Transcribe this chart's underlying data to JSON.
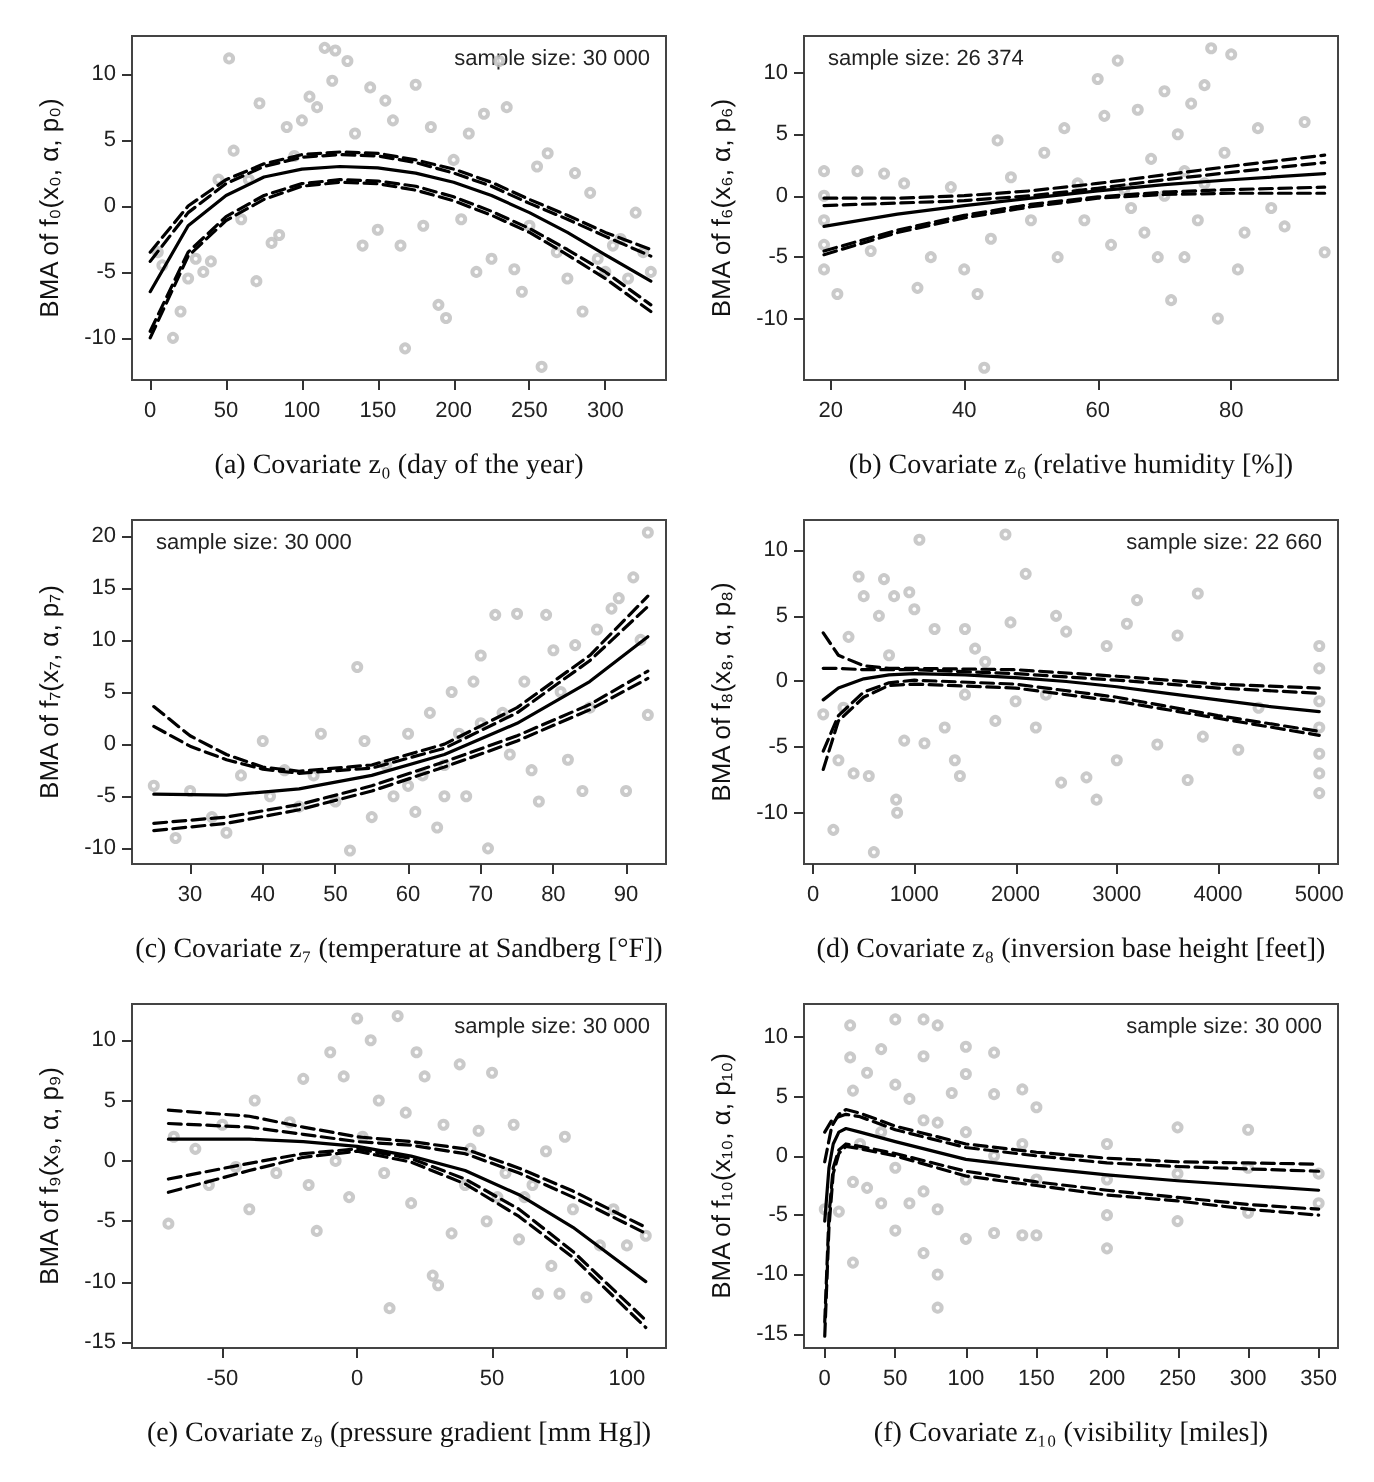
{
  "chart_data": [
    {
      "type": "scatter",
      "xlabel": "(a) Covariate z₀ (day of the year)",
      "ylabel": "BMA of f₀(x₀, α, p₀)",
      "annotations": [
        "sample size: 30 000"
      ],
      "xlim": [
        -12,
        340
      ],
      "ylim": [
        -13.2,
        12.9
      ],
      "xticks": [
        0,
        50,
        100,
        150,
        200,
        250,
        300
      ],
      "yticks": [
        -10,
        -5,
        0,
        5,
        10
      ],
      "series": [
        {
          "type": "scatter",
          "color": "#bdbdbd",
          "marker": "circle",
          "x": [
            5,
            8,
            15,
            20,
            25,
            30,
            35,
            40,
            45,
            52,
            55,
            60,
            65,
            70,
            72,
            80,
            85,
            90,
            95,
            100,
            105,
            110,
            115,
            120,
            122,
            130,
            135,
            140,
            145,
            150,
            155,
            160,
            165,
            168,
            175,
            180,
            185,
            190,
            195,
            200,
            205,
            210,
            215,
            220,
            225,
            230,
            235,
            240,
            245,
            250,
            255,
            258,
            262,
            268,
            275,
            280,
            285,
            290,
            295,
            300,
            305,
            310,
            315,
            320,
            325,
            330
          ],
          "values": [
            -3.5,
            -4.5,
            -10,
            -8,
            -5.5,
            -4,
            -5,
            -4.2,
            2,
            11.2,
            4.2,
            -1,
            2,
            -5.7,
            7.8,
            -2.8,
            -2.2,
            6,
            3.8,
            6.5,
            8.3,
            7.5,
            12,
            9.5,
            11.8,
            11,
            5.5,
            -3,
            9,
            -1.8,
            8,
            6.5,
            -3,
            -10.8,
            9.2,
            -1.5,
            6,
            -7.5,
            -8.5,
            3.5,
            -1,
            5.5,
            -5,
            7,
            -4,
            11,
            7.5,
            -4.8,
            -6.5,
            -1.5,
            3,
            -12.2,
            4,
            -3.5,
            -5.5,
            2.5,
            -8,
            1,
            -4,
            -5,
            -3,
            -2.5,
            -5.5,
            -0.5,
            -3.5,
            -5
          ]
        },
        {
          "type": "line",
          "color": "#000000",
          "marker": "none",
          "line_style": "solid",
          "x": [
            0,
            25,
            50,
            75,
            100,
            125,
            150,
            175,
            200,
            225,
            250,
            275,
            300,
            330
          ],
          "values": [
            -6.5,
            -1.5,
            0.8,
            2.2,
            2.8,
            3.0,
            2.9,
            2.5,
            1.8,
            0.8,
            -0.5,
            -2,
            -3.7,
            -5.7
          ]
        },
        {
          "type": "line",
          "color": "#000000",
          "marker": "none",
          "line_style": "dashed",
          "x": [
            0,
            25,
            50,
            75,
            100,
            125,
            150,
            175,
            200,
            225,
            250,
            275,
            300,
            330
          ],
          "values": [
            -3.5,
            0,
            2,
            3.2,
            3.9,
            4.1,
            4.0,
            3.5,
            2.8,
            1.8,
            0.5,
            -0.7,
            -2,
            -3.3
          ]
        },
        {
          "type": "line",
          "color": "#000000",
          "marker": "none",
          "line_style": "dashed",
          "x": [
            0,
            25,
            50,
            75,
            100,
            125,
            150,
            175,
            200,
            225,
            250,
            275,
            300,
            330
          ],
          "values": [
            -4.2,
            -0.5,
            1.7,
            3.0,
            3.7,
            3.9,
            3.8,
            3.3,
            2.5,
            1.5,
            0.2,
            -1,
            -2.3,
            -3.8
          ]
        },
        {
          "type": "line",
          "color": "#000000",
          "marker": "none",
          "line_style": "dashed",
          "x": [
            0,
            25,
            50,
            75,
            100,
            125,
            150,
            175,
            200,
            225,
            250,
            275,
            300,
            330
          ],
          "values": [
            -9.5,
            -3.5,
            -0.8,
            0.8,
            1.7,
            2.0,
            1.9,
            1.5,
            0.7,
            -0.4,
            -1.7,
            -3.3,
            -5,
            -7.5
          ]
        },
        {
          "type": "line",
          "color": "#000000",
          "marker": "none",
          "line_style": "dashed",
          "x": [
            0,
            25,
            50,
            75,
            100,
            125,
            150,
            175,
            200,
            225,
            250,
            275,
            300,
            330
          ],
          "values": [
            -10,
            -3.8,
            -1.1,
            0.5,
            1.5,
            1.8,
            1.7,
            1.2,
            0.4,
            -0.7,
            -2,
            -3.7,
            -5.5,
            -8
          ]
        }
      ]
    },
    {
      "type": "scatter",
      "xlabel": "(b) Covariate z₆ (relative humidity [%])",
      "ylabel": "BMA of f₆(x₆, α, p₆)",
      "annotations": [
        "sample size: 26 374"
      ],
      "xlim": [
        16,
        96
      ],
      "ylim": [
        -15,
        13
      ],
      "xticks": [
        20,
        40,
        60,
        80
      ],
      "yticks": [
        -10,
        -5,
        0,
        5,
        10
      ],
      "series": [
        {
          "type": "scatter",
          "color": "#bdbdbd",
          "marker": "circle",
          "x": [
            19,
            19,
            19,
            19,
            19,
            21,
            24,
            26,
            28,
            31,
            33,
            35,
            38,
            40,
            42,
            43,
            44,
            45,
            47,
            50,
            52,
            54,
            55,
            57,
            58,
            60,
            61,
            62,
            63,
            65,
            66,
            67,
            68,
            69,
            70,
            71,
            72,
            73,
            73,
            74,
            75,
            76,
            77,
            78,
            79,
            80,
            81,
            82,
            84,
            86,
            88,
            91,
            94,
            64,
            70,
            76
          ],
          "values": [
            -6,
            -4,
            -2,
            0,
            2,
            -8,
            2,
            -4.5,
            1.8,
            1,
            -7.5,
            -5,
            0.7,
            -6,
            -8,
            -14,
            -3.5,
            4.5,
            1.5,
            -2,
            3.5,
            -5,
            5.5,
            1,
            -2,
            9.5,
            6.5,
            -4,
            11,
            -1,
            7,
            -3,
            3,
            -5,
            8.5,
            -8.5,
            5,
            -5,
            2,
            7.5,
            -2,
            9,
            12,
            -10,
            3.5,
            11.5,
            -6,
            -3,
            5.5,
            -1,
            -2.5,
            6,
            -4.6,
            0.5,
            0,
            1
          ]
        },
        {
          "type": "line",
          "color": "#000000",
          "marker": "none",
          "line_style": "solid",
          "x": [
            19,
            30,
            40,
            50,
            60,
            70,
            80,
            94
          ],
          "values": [
            -2.5,
            -1.5,
            -0.8,
            -0.2,
            0.4,
            0.9,
            1.3,
            1.8
          ]
        },
        {
          "type": "line",
          "color": "#000000",
          "marker": "none",
          "line_style": "dashed",
          "x": [
            19,
            30,
            40,
            50,
            60,
            70,
            80,
            94
          ],
          "values": [
            -0.2,
            -0.2,
            0,
            0.4,
            1.0,
            1.7,
            2.4,
            3.3
          ]
        },
        {
          "type": "line",
          "color": "#000000",
          "marker": "none",
          "line_style": "dashed",
          "x": [
            19,
            30,
            40,
            50,
            60,
            70,
            80,
            94
          ],
          "values": [
            -0.8,
            -0.6,
            -0.4,
            0,
            0.6,
            1.3,
            1.9,
            2.7
          ]
        },
        {
          "type": "line",
          "color": "#000000",
          "marker": "none",
          "line_style": "dashed",
          "x": [
            19,
            30,
            40,
            50,
            60,
            70,
            80,
            94
          ],
          "values": [
            -4.5,
            -2.8,
            -1.6,
            -0.7,
            -0.1,
            0.3,
            0.5,
            0.7
          ]
        },
        {
          "type": "line",
          "color": "#000000",
          "marker": "none",
          "line_style": "dashed",
          "x": [
            19,
            30,
            40,
            50,
            60,
            70,
            80,
            94
          ],
          "values": [
            -4.8,
            -3.0,
            -1.8,
            -0.9,
            -0.2,
            0.1,
            0.2,
            0.2
          ]
        }
      ]
    },
    {
      "type": "scatter",
      "xlabel": "(c) Covariate z₇ (temperature at Sandberg [°F])",
      "ylabel": "BMA of f₇(x₇, α, p₇)",
      "annotations": [
        "sample size: 30 000"
      ],
      "xlim": [
        22,
        95.5
      ],
      "ylim": [
        -11.5,
        21.5
      ],
      "xticks": [
        30,
        40,
        50,
        60,
        70,
        80,
        90
      ],
      "yticks": [
        -10,
        -5,
        0,
        5,
        10,
        15,
        20
      ],
      "series": [
        {
          "type": "scatter",
          "color": "#bdbdbd",
          "marker": "circle",
          "x": [
            25,
            28,
            30,
            33,
            35,
            37,
            40,
            41,
            43,
            45,
            47,
            48,
            50,
            52,
            53,
            54,
            55,
            57,
            58,
            60,
            61,
            62,
            63,
            64,
            65,
            66,
            67,
            68,
            69,
            70,
            71,
            72,
            73,
            74,
            75,
            76,
            77,
            78,
            79,
            80,
            81,
            82,
            83,
            84,
            85,
            86,
            88,
            89,
            90,
            91,
            92,
            93,
            93,
            70,
            65,
            60
          ],
          "values": [
            -4,
            -9,
            -4.5,
            -7,
            -8.5,
            -3,
            0.3,
            -5,
            -2.5,
            -6,
            -3,
            1,
            -5.5,
            -10.2,
            7.4,
            0.3,
            -7,
            -2,
            -5,
            1,
            -6.5,
            -3,
            3,
            -8,
            -5,
            5,
            1,
            -5,
            6,
            8.5,
            -10,
            12.4,
            3,
            -1,
            12.5,
            6,
            -2.5,
            -5.5,
            12.4,
            9,
            5,
            -1.5,
            9.5,
            -4.5,
            3.5,
            11,
            13,
            14,
            -4.5,
            16,
            10,
            20.3,
            2.8,
            2,
            -2,
            -4
          ]
        },
        {
          "type": "line",
          "color": "#000000",
          "marker": "none",
          "line_style": "solid",
          "x": [
            25,
            35,
            45,
            55,
            65,
            75,
            85,
            93
          ],
          "values": [
            -4.8,
            -4.9,
            -4.3,
            -3.0,
            -1,
            2,
            6,
            10.3
          ]
        },
        {
          "type": "line",
          "color": "#000000",
          "marker": "none",
          "line_style": "dashed",
          "x": [
            25,
            30,
            35,
            40,
            45,
            55,
            65,
            75,
            85,
            93
          ],
          "values": [
            3.6,
            0.8,
            -1,
            -2.2,
            -2.6,
            -2.0,
            0,
            3.5,
            8.5,
            14.2
          ]
        },
        {
          "type": "line",
          "color": "#000000",
          "marker": "none",
          "line_style": "dashed",
          "x": [
            25,
            30,
            35,
            40,
            45,
            55,
            65,
            75,
            85,
            93
          ],
          "values": [
            1.7,
            -0.2,
            -1.5,
            -2.4,
            -2.8,
            -2.3,
            -0.4,
            3.0,
            8,
            13.2
          ]
        },
        {
          "type": "line",
          "color": "#000000",
          "marker": "none",
          "line_style": "dashed",
          "x": [
            25,
            35,
            45,
            55,
            65,
            75,
            85,
            93
          ],
          "values": [
            -7.6,
            -7,
            -5.8,
            -4,
            -1.7,
            0.8,
            3.8,
            7
          ]
        },
        {
          "type": "line",
          "color": "#000000",
          "marker": "none",
          "line_style": "dashed",
          "x": [
            25,
            35,
            45,
            55,
            65,
            75,
            85,
            93
          ],
          "values": [
            -8.3,
            -7.6,
            -6.3,
            -4.5,
            -2.2,
            0.3,
            3.3,
            6.3
          ]
        }
      ]
    },
    {
      "type": "scatter",
      "xlabel": "(d) Covariate z₈ (inversion base height [feet])",
      "ylabel": "BMA of f₈(x₈, α, p₈)",
      "annotations": [
        "sample size: 22 660"
      ],
      "xlim": [
        -90,
        5185
      ],
      "ylim": [
        -13.9,
        12.3
      ],
      "xticks": [
        0,
        1000,
        2000,
        3000,
        4000,
        5000
      ],
      "yticks": [
        -10,
        -5,
        0,
        5,
        10
      ],
      "series": [
        {
          "type": "scatter",
          "color": "#bdbdbd",
          "marker": "circle",
          "x": [
            100,
            200,
            250,
            300,
            350,
            400,
            450,
            500,
            550,
            600,
            650,
            700,
            750,
            800,
            820,
            830,
            900,
            950,
            1000,
            1050,
            1100,
            1200,
            1300,
            1400,
            1450,
            1500,
            1600,
            1800,
            1900,
            1950,
            2000,
            2100,
            2200,
            2400,
            2450,
            2500,
            2700,
            2800,
            2900,
            3000,
            3100,
            3200,
            3400,
            3600,
            3700,
            3800,
            3850,
            4200,
            4400,
            5000,
            5000,
            5000,
            5000,
            5000,
            5000,
            5000,
            1500,
            1700,
            2300
          ],
          "values": [
            -2.5,
            -11.3,
            -6,
            -2,
            3.4,
            -7,
            8,
            6.5,
            -7.2,
            -13,
            5,
            7.8,
            2,
            6.5,
            -9,
            -10,
            -4.5,
            6.8,
            5.5,
            10.8,
            -4.7,
            4,
            -3.5,
            -6,
            -7.2,
            4,
            2.5,
            -3,
            11.2,
            4.5,
            -1.5,
            8.2,
            -3.5,
            5,
            -7.7,
            3.8,
            -7.3,
            -9,
            2.7,
            -6,
            4.4,
            6.2,
            -4.8,
            3.5,
            -7.5,
            6.7,
            -4.2,
            -5.2,
            -2,
            2.7,
            1,
            -1.5,
            -3.5,
            -5.5,
            -7,
            -8.5,
            -1,
            1.5,
            -1
          ]
        },
        {
          "type": "line",
          "color": "#000000",
          "marker": "none",
          "line_style": "solid",
          "x": [
            100,
            250,
            500,
            750,
            1000,
            1500,
            2000,
            2500,
            3000,
            3500,
            4000,
            4500,
            5000
          ],
          "values": [
            -1.4,
            -0.5,
            0.2,
            0.5,
            0.6,
            0.5,
            0.3,
            0,
            -0.4,
            -0.9,
            -1.4,
            -1.9,
            -2.3
          ]
        },
        {
          "type": "line",
          "color": "#000000",
          "marker": "none",
          "line_style": "dashed",
          "x": [
            100,
            250,
            500,
            750,
            1000,
            2000,
            3000,
            4000,
            5000
          ],
          "values": [
            3.7,
            2.0,
            1.2,
            1.0,
            1.0,
            0.9,
            0.4,
            -0.2,
            -0.5
          ]
        },
        {
          "type": "line",
          "color": "#000000",
          "marker": "none",
          "line_style": "dashed",
          "x": [
            100,
            250,
            500,
            750,
            1000,
            2000,
            3000,
            4000,
            5000
          ],
          "values": [
            1.0,
            1.0,
            0.9,
            0.9,
            0.9,
            0.6,
            0.1,
            -0.5,
            -0.9
          ]
        },
        {
          "type": "line",
          "color": "#000000",
          "marker": "none",
          "line_style": "dashed",
          "x": [
            100,
            250,
            500,
            750,
            1000,
            2000,
            3000,
            4000,
            5000
          ],
          "values": [
            -5.3,
            -2.6,
            -0.8,
            -0.1,
            0.1,
            -0.2,
            -1.2,
            -2.6,
            -3.8
          ]
        },
        {
          "type": "line",
          "color": "#000000",
          "marker": "none",
          "line_style": "dashed",
          "x": [
            100,
            250,
            500,
            750,
            1000,
            2000,
            3000,
            4000,
            5000
          ],
          "values": [
            -6.7,
            -3.0,
            -1.2,
            -0.3,
            -0.2,
            -0.5,
            -1.5,
            -2.8,
            -4.1
          ]
        }
      ]
    },
    {
      "type": "scatter",
      "xlabel": "(e) Covariate z₉ (pressure gradient [mm Hg])",
      "ylabel": "BMA of f₉(x₉, α, p₉)",
      "annotations": [
        "sample size: 30 000"
      ],
      "xlim": [
        -83.5,
        114.5
      ],
      "ylim": [
        -15.5,
        13
      ],
      "xticks": [
        -50,
        0,
        50,
        100
      ],
      "yticks": [
        -15,
        -10,
        -5,
        0,
        5,
        10
      ],
      "series": [
        {
          "type": "scatter",
          "color": "#bdbdbd",
          "marker": "circle",
          "x": [
            -70,
            -68,
            -60,
            -55,
            -50,
            -45,
            -40,
            -38,
            -30,
            -25,
            -20,
            -18,
            -15,
            -10,
            -8,
            -5,
            -3,
            0,
            2,
            5,
            8,
            10,
            12,
            15,
            18,
            20,
            22,
            25,
            28,
            30,
            32,
            35,
            38,
            40,
            42,
            45,
            48,
            50,
            52,
            55,
            58,
            60,
            62,
            65,
            67,
            70,
            72,
            75,
            77,
            80,
            85,
            90,
            95,
            100,
            107
          ],
          "values": [
            -5.2,
            2,
            1,
            -2,
            3,
            -0.5,
            -4,
            5,
            -1,
            3.2,
            6.8,
            -2,
            -5.8,
            9,
            0,
            7,
            -3,
            11.8,
            2,
            10,
            5,
            -1,
            -12.2,
            12,
            4,
            -3.5,
            9,
            7,
            -9.5,
            -10.3,
            3,
            -6,
            8,
            -2,
            1,
            2.5,
            -5,
            7.3,
            -3,
            -1,
            3,
            -6.5,
            -3,
            -2,
            -11,
            0.8,
            -8.7,
            -11,
            2,
            -4,
            -11.3,
            -7,
            -4,
            -7,
            -6.2
          ]
        },
        {
          "type": "line",
          "color": "#000000",
          "marker": "none",
          "line_style": "solid",
          "x": [
            -70,
            -40,
            -20,
            0,
            20,
            40,
            60,
            80,
            107
          ],
          "values": [
            1.8,
            1.8,
            1.6,
            1.2,
            0.4,
            -0.8,
            -2.8,
            -5.5,
            -10
          ]
        },
        {
          "type": "line",
          "color": "#000000",
          "marker": "none",
          "line_style": "dashed",
          "x": [
            -70,
            -40,
            -20,
            0,
            20,
            40,
            60,
            80,
            107
          ],
          "values": [
            4.2,
            3.7,
            2.8,
            2.0,
            1.6,
            1.0,
            -0.6,
            -2.5,
            -5.5
          ]
        },
        {
          "type": "line",
          "color": "#000000",
          "marker": "none",
          "line_style": "dashed",
          "x": [
            -70,
            -40,
            -20,
            0,
            20,
            40,
            60,
            80,
            107
          ],
          "values": [
            3.1,
            2.8,
            2.2,
            1.6,
            1.3,
            0.6,
            -1.0,
            -3.0,
            -6
          ]
        },
        {
          "type": "line",
          "color": "#000000",
          "marker": "none",
          "line_style": "dashed",
          "x": [
            -70,
            -40,
            -20,
            0,
            20,
            40,
            60,
            80,
            107
          ],
          "values": [
            -1.5,
            -0.2,
            0.6,
            1.0,
            0.2,
            -1.5,
            -4,
            -7.5,
            -13.2
          ]
        },
        {
          "type": "line",
          "color": "#000000",
          "marker": "none",
          "line_style": "dashed",
          "x": [
            -70,
            -40,
            -20,
            0,
            20,
            40,
            60,
            80,
            107
          ],
          "values": [
            -2.6,
            -0.8,
            0.3,
            0.8,
            -0.1,
            -1.9,
            -4.6,
            -8,
            -13.8
          ]
        }
      ]
    },
    {
      "type": "scatter",
      "xlabel": "(f) Covariate z₁₀ (visibility [miles])",
      "ylabel": "BMA of f₁₀(x₁₀, α, p₁₀)",
      "annotations": [
        "sample size: 30 000"
      ],
      "xlim": [
        -14.7,
        363.7
      ],
      "ylim": [
        -16.2,
        12.8
      ],
      "xticks": [
        0,
        50,
        100,
        150,
        200,
        250,
        300,
        350
      ],
      "yticks": [
        -15,
        -10,
        -5,
        0,
        5,
        10
      ],
      "series": [
        {
          "type": "scatter",
          "color": "#bdbdbd",
          "marker": "circle",
          "x": [
            0,
            10,
            18,
            18,
            20,
            20,
            20,
            25,
            30,
            30,
            40,
            40,
            40,
            50,
            50,
            50,
            50,
            60,
            60,
            70,
            70,
            70,
            70,
            70,
            80,
            80,
            80,
            80,
            80,
            90,
            100,
            100,
            100,
            100,
            100,
            120,
            120,
            120,
            120,
            140,
            140,
            140,
            150,
            150,
            150,
            200,
            200,
            200,
            200,
            250,
            250,
            250,
            300,
            300,
            300,
            350,
            350
          ],
          "values": [
            -4.5,
            -4.7,
            11,
            8.3,
            -9,
            -2.2,
            5.5,
            1,
            7,
            -2.7,
            9,
            -4,
            2,
            11.5,
            -6.3,
            6,
            -1,
            4.8,
            -4,
            11.5,
            8.4,
            3,
            -8.2,
            -3,
            11,
            -12.8,
            -10,
            -4.5,
            2.8,
            5.3,
            9.2,
            6.9,
            2,
            -2,
            -7,
            8.7,
            5.2,
            -6.5,
            0,
            5.6,
            -6.7,
            1,
            4.1,
            -6.7,
            -2,
            1,
            -7.8,
            -5,
            -2,
            2.4,
            -5.5,
            -1.5,
            2.2,
            -4.8,
            -1,
            -1.5,
            -4
          ]
        },
        {
          "type": "line",
          "color": "#000000",
          "marker": "none",
          "line_style": "solid",
          "x": [
            0,
            3,
            6,
            10,
            15,
            25,
            50,
            100,
            150,
            200,
            250,
            300,
            350
          ],
          "values": [
            -5.5,
            -1,
            1,
            2,
            2.3,
            2,
            1.2,
            -0.3,
            -1.0,
            -1.6,
            -2.1,
            -2.5,
            -2.9
          ]
        },
        {
          "type": "line",
          "color": "#000000",
          "marker": "none",
          "line_style": "dashed",
          "x": [
            0,
            5,
            10,
            15,
            25,
            50,
            100,
            150,
            200,
            250,
            300,
            350
          ],
          "values": [
            -0.5,
            2.5,
            3.5,
            3.9,
            3.6,
            2.5,
            1.0,
            0.3,
            -0.2,
            -0.5,
            -0.6,
            -0.7
          ]
        },
        {
          "type": "line",
          "color": "#000000",
          "marker": "none",
          "line_style": "dashed",
          "x": [
            0,
            5,
            10,
            15,
            25,
            50,
            100,
            150,
            200,
            250,
            300,
            350
          ],
          "values": [
            2.0,
            3.0,
            3.3,
            3.5,
            3.3,
            2.2,
            0.7,
            0,
            -0.6,
            -0.9,
            -1.1,
            -1.3
          ]
        },
        {
          "type": "line",
          "color": "#000000",
          "marker": "none",
          "line_style": "dashed",
          "x": [
            0,
            3,
            6,
            10,
            15,
            25,
            50,
            100,
            150,
            200,
            250,
            300,
            350
          ],
          "values": [
            -14,
            -5,
            -1,
            0.5,
            1.0,
            0.8,
            0.2,
            -1.3,
            -2.2,
            -2.9,
            -3.5,
            -4.1,
            -4.5
          ]
        },
        {
          "type": "line",
          "color": "#000000",
          "marker": "none",
          "line_style": "dashed",
          "x": [
            0,
            3,
            6,
            10,
            15,
            25,
            50,
            100,
            150,
            200,
            250,
            300,
            350
          ],
          "values": [
            -15.2,
            -6,
            -1.5,
            0.2,
            0.8,
            0.6,
            0,
            -1.7,
            -2.5,
            -3.3,
            -3.8,
            -4.5,
            -5.0
          ]
        }
      ]
    }
  ]
}
